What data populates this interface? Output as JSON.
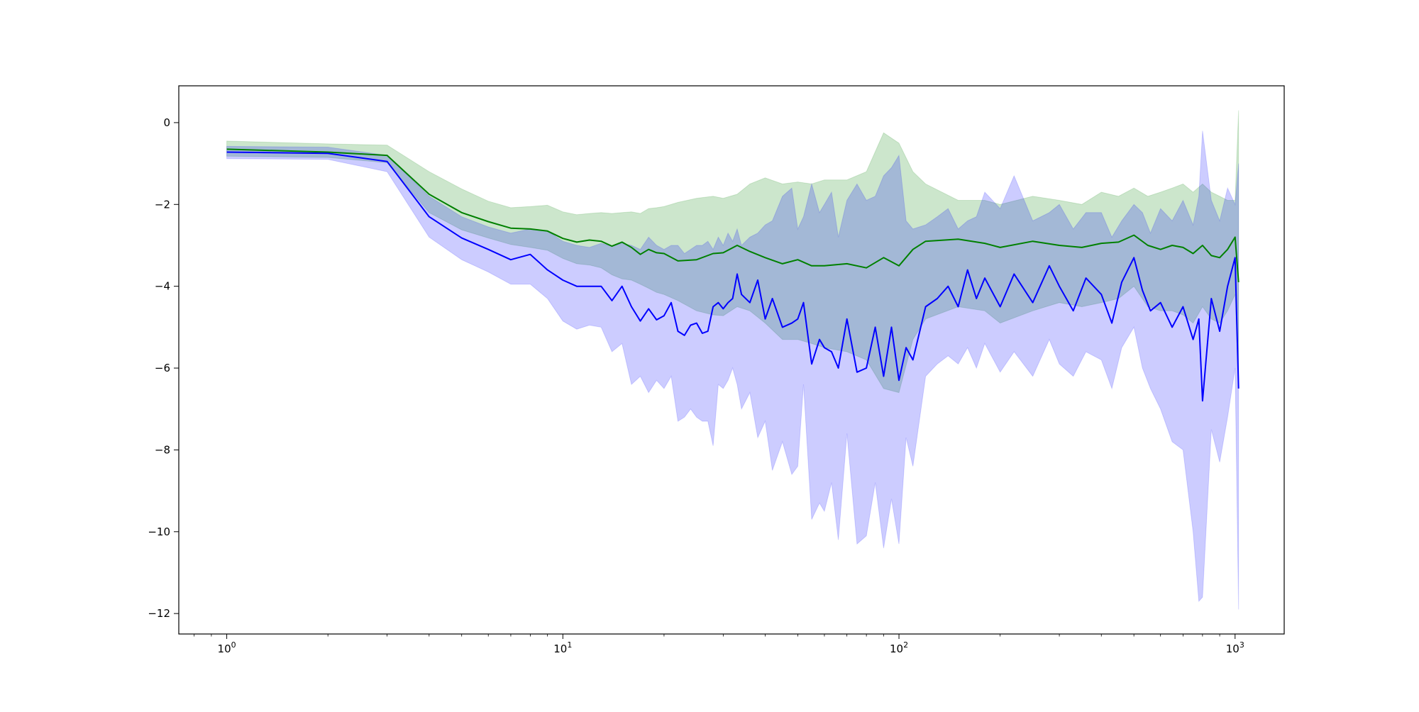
{
  "chart_data": {
    "type": "line",
    "title": "",
    "xlabel": "",
    "ylabel": "",
    "xscale": "log",
    "xlim": [
      0.72,
      1400
    ],
    "ylim": [
      -12.5,
      0.9
    ],
    "grid": false,
    "legend": "none",
    "x_ticks": [
      {
        "value": 1,
        "base": "10",
        "exp": "0"
      },
      {
        "value": 10,
        "base": "10",
        "exp": "1"
      },
      {
        "value": 100,
        "base": "10",
        "exp": "2"
      },
      {
        "value": 1000,
        "base": "10",
        "exp": "3"
      }
    ],
    "y_ticks": [
      {
        "value": 0,
        "label": "0"
      },
      {
        "value": -2,
        "label": "−2"
      },
      {
        "value": -4,
        "label": "−4"
      },
      {
        "value": -6,
        "label": "−6"
      },
      {
        "value": -8,
        "label": "−8"
      },
      {
        "value": -10,
        "label": "−10"
      },
      {
        "value": -12,
        "label": "−12"
      }
    ],
    "series": [
      {
        "color": "#008000",
        "band_color": "#008000",
        "band_opacity": 0.2,
        "x": [
          1,
          2,
          3,
          4,
          5,
          6,
          7,
          8,
          9,
          10,
          11,
          12,
          13,
          14,
          15,
          16,
          17,
          18,
          19,
          20,
          22,
          25,
          28,
          30,
          33,
          36,
          40,
          45,
          50,
          55,
          60,
          70,
          80,
          90,
          100,
          110,
          120,
          150,
          180,
          200,
          250,
          300,
          350,
          400,
          450,
          500,
          550,
          600,
          650,
          700,
          750,
          800,
          850,
          900,
          950,
          1000,
          1024
        ],
        "mean": [
          -0.65,
          -0.72,
          -0.8,
          -1.75,
          -2.2,
          -2.42,
          -2.58,
          -2.6,
          -2.65,
          -2.83,
          -2.92,
          -2.87,
          -2.9,
          -3.02,
          -2.92,
          -3.05,
          -3.22,
          -3.1,
          -3.18,
          -3.2,
          -3.38,
          -3.35,
          -3.2,
          -3.18,
          -3.0,
          -3.15,
          -3.3,
          -3.45,
          -3.35,
          -3.5,
          -3.5,
          -3.45,
          -3.55,
          -3.3,
          -3.5,
          -3.1,
          -2.9,
          -2.85,
          -2.95,
          -3.05,
          -2.9,
          -3.0,
          -3.05,
          -2.95,
          -2.92,
          -2.75,
          -3.0,
          -3.1,
          -3.0,
          -3.05,
          -3.2,
          -3.0,
          -3.25,
          -3.3,
          -3.1,
          -2.8,
          -3.9
        ],
        "upper": [
          -0.45,
          -0.52,
          -0.55,
          -1.2,
          -1.62,
          -1.92,
          -2.08,
          -2.05,
          -2.02,
          -2.18,
          -2.25,
          -2.22,
          -2.2,
          -2.22,
          -2.2,
          -2.18,
          -2.22,
          -2.1,
          -2.08,
          -2.05,
          -1.95,
          -1.85,
          -1.8,
          -1.85,
          -1.75,
          -1.5,
          -1.35,
          -1.5,
          -1.45,
          -1.5,
          -1.4,
          -1.4,
          -1.2,
          -0.25,
          -0.5,
          -1.2,
          -1.5,
          -1.9,
          -1.9,
          -2.0,
          -1.8,
          -1.9,
          -2.0,
          -1.7,
          -1.8,
          -1.6,
          -1.8,
          -1.7,
          -1.6,
          -1.5,
          -1.7,
          -1.5,
          -1.7,
          -1.8,
          -1.9,
          -1.9,
          0.3
        ],
        "lower": [
          -0.82,
          -0.85,
          -0.98,
          -2.2,
          -2.62,
          -2.82,
          -2.98,
          -3.05,
          -3.12,
          -3.32,
          -3.45,
          -3.48,
          -3.55,
          -3.72,
          -3.82,
          -3.85,
          -3.95,
          -4.05,
          -4.15,
          -4.2,
          -4.35,
          -4.6,
          -4.7,
          -4.72,
          -4.5,
          -4.6,
          -4.9,
          -5.3,
          -5.3,
          -5.4,
          -5.5,
          -5.6,
          -5.8,
          -6.5,
          -6.6,
          -5.3,
          -4.8,
          -4.5,
          -4.6,
          -4.9,
          -4.6,
          -4.4,
          -4.5,
          -4.4,
          -4.3,
          -4.0,
          -4.5,
          -4.6,
          -4.6,
          -4.7,
          -4.9,
          -4.5,
          -4.8,
          -4.9,
          -4.6,
          -4.2,
          -6.5
        ]
      },
      {
        "color": "#0000ff",
        "band_color": "#0000ff",
        "band_opacity": 0.2,
        "x": [
          1,
          2,
          3,
          4,
          5,
          6,
          7,
          8,
          9,
          10,
          11,
          12,
          13,
          14,
          15,
          16,
          17,
          18,
          19,
          20,
          21,
          22,
          23,
          24,
          25,
          26,
          27,
          28,
          29,
          30,
          31,
          32,
          33,
          34,
          36,
          38,
          40,
          42,
          45,
          48,
          50,
          52,
          55,
          58,
          60,
          63,
          66,
          70,
          75,
          80,
          85,
          90,
          95,
          100,
          105,
          110,
          120,
          130,
          140,
          150,
          160,
          170,
          180,
          200,
          220,
          250,
          280,
          300,
          330,
          360,
          400,
          430,
          460,
          500,
          530,
          560,
          600,
          650,
          700,
          750,
          780,
          800,
          850,
          900,
          950,
          1000,
          1024
        ],
        "mean": [
          -0.72,
          -0.75,
          -0.95,
          -2.3,
          -2.82,
          -3.1,
          -3.35,
          -3.22,
          -3.6,
          -3.85,
          -4.0,
          -4.0,
          -4.0,
          -4.35,
          -4.0,
          -4.5,
          -4.85,
          -4.55,
          -4.82,
          -4.72,
          -4.4,
          -5.1,
          -5.2,
          -4.95,
          -4.9,
          -5.15,
          -5.1,
          -4.5,
          -4.4,
          -4.55,
          -4.4,
          -4.3,
          -3.7,
          -4.2,
          -4.4,
          -3.85,
          -4.8,
          -4.3,
          -5.0,
          -4.9,
          -4.8,
          -4.4,
          -5.9,
          -5.3,
          -5.5,
          -5.6,
          -6.0,
          -4.8,
          -6.1,
          -6.0,
          -5.0,
          -6.2,
          -5.0,
          -6.3,
          -5.5,
          -5.8,
          -4.5,
          -4.3,
          -4.0,
          -4.5,
          -3.6,
          -4.3,
          -3.8,
          -4.5,
          -3.7,
          -4.4,
          -3.5,
          -4.0,
          -4.6,
          -3.8,
          -4.2,
          -4.9,
          -3.9,
          -3.3,
          -4.1,
          -4.6,
          -4.4,
          -5.0,
          -4.5,
          -5.3,
          -4.8,
          -6.8,
          -4.3,
          -5.1,
          -4.0,
          -3.3,
          -6.5
        ],
        "upper": [
          -0.58,
          -0.6,
          -0.8,
          -1.8,
          -2.3,
          -2.55,
          -2.7,
          -2.6,
          -2.65,
          -2.9,
          -3.0,
          -3.05,
          -2.95,
          -3.02,
          -2.95,
          -3.0,
          -3.1,
          -2.8,
          -3.0,
          -3.1,
          -3.0,
          -3.0,
          -3.2,
          -3.1,
          -3.0,
          -3.0,
          -2.9,
          -3.1,
          -2.8,
          -3.0,
          -2.7,
          -2.9,
          -2.6,
          -3.0,
          -2.8,
          -2.7,
          -2.5,
          -2.4,
          -1.8,
          -1.6,
          -2.6,
          -2.3,
          -1.5,
          -2.2,
          -2.0,
          -1.7,
          -2.8,
          -1.9,
          -1.5,
          -1.9,
          -1.8,
          -1.3,
          -1.1,
          -0.8,
          -2.4,
          -2.6,
          -2.5,
          -2.3,
          -2.1,
          -2.6,
          -2.4,
          -2.3,
          -1.7,
          -2.1,
          -1.3,
          -2.4,
          -2.2,
          -2.0,
          -2.6,
          -2.2,
          -2.2,
          -2.8,
          -2.4,
          -2.0,
          -2.2,
          -2.7,
          -2.1,
          -2.4,
          -1.9,
          -2.5,
          -1.8,
          -0.2,
          -1.9,
          -2.4,
          -1.6,
          -2.0,
          -1.0
        ],
        "lower": [
          -0.88,
          -0.9,
          -1.2,
          -2.8,
          -3.35,
          -3.65,
          -3.95,
          -3.95,
          -4.3,
          -4.85,
          -5.05,
          -4.95,
          -5.0,
          -5.6,
          -5.4,
          -6.4,
          -6.2,
          -6.6,
          -6.3,
          -6.5,
          -6.2,
          -7.3,
          -7.2,
          -7.0,
          -7.2,
          -7.3,
          -7.3,
          -7.9,
          -6.4,
          -6.5,
          -6.3,
          -6.0,
          -6.4,
          -7.0,
          -6.6,
          -7.7,
          -7.3,
          -8.5,
          -7.8,
          -8.6,
          -8.4,
          -6.4,
          -9.7,
          -9.3,
          -9.5,
          -8.8,
          -10.2,
          -7.6,
          -10.3,
          -10.1,
          -8.8,
          -10.4,
          -9.2,
          -10.3,
          -7.7,
          -8.4,
          -6.2,
          -5.9,
          -5.7,
          -5.9,
          -5.5,
          -6.0,
          -5.4,
          -6.1,
          -5.6,
          -6.2,
          -5.3,
          -5.9,
          -6.2,
          -5.6,
          -5.8,
          -6.5,
          -5.5,
          -5.0,
          -6.0,
          -6.5,
          -7.0,
          -7.8,
          -8.0,
          -10.0,
          -11.7,
          -11.6,
          -7.5,
          -8.3,
          -7.2,
          -6.0,
          -11.9
        ]
      }
    ]
  }
}
